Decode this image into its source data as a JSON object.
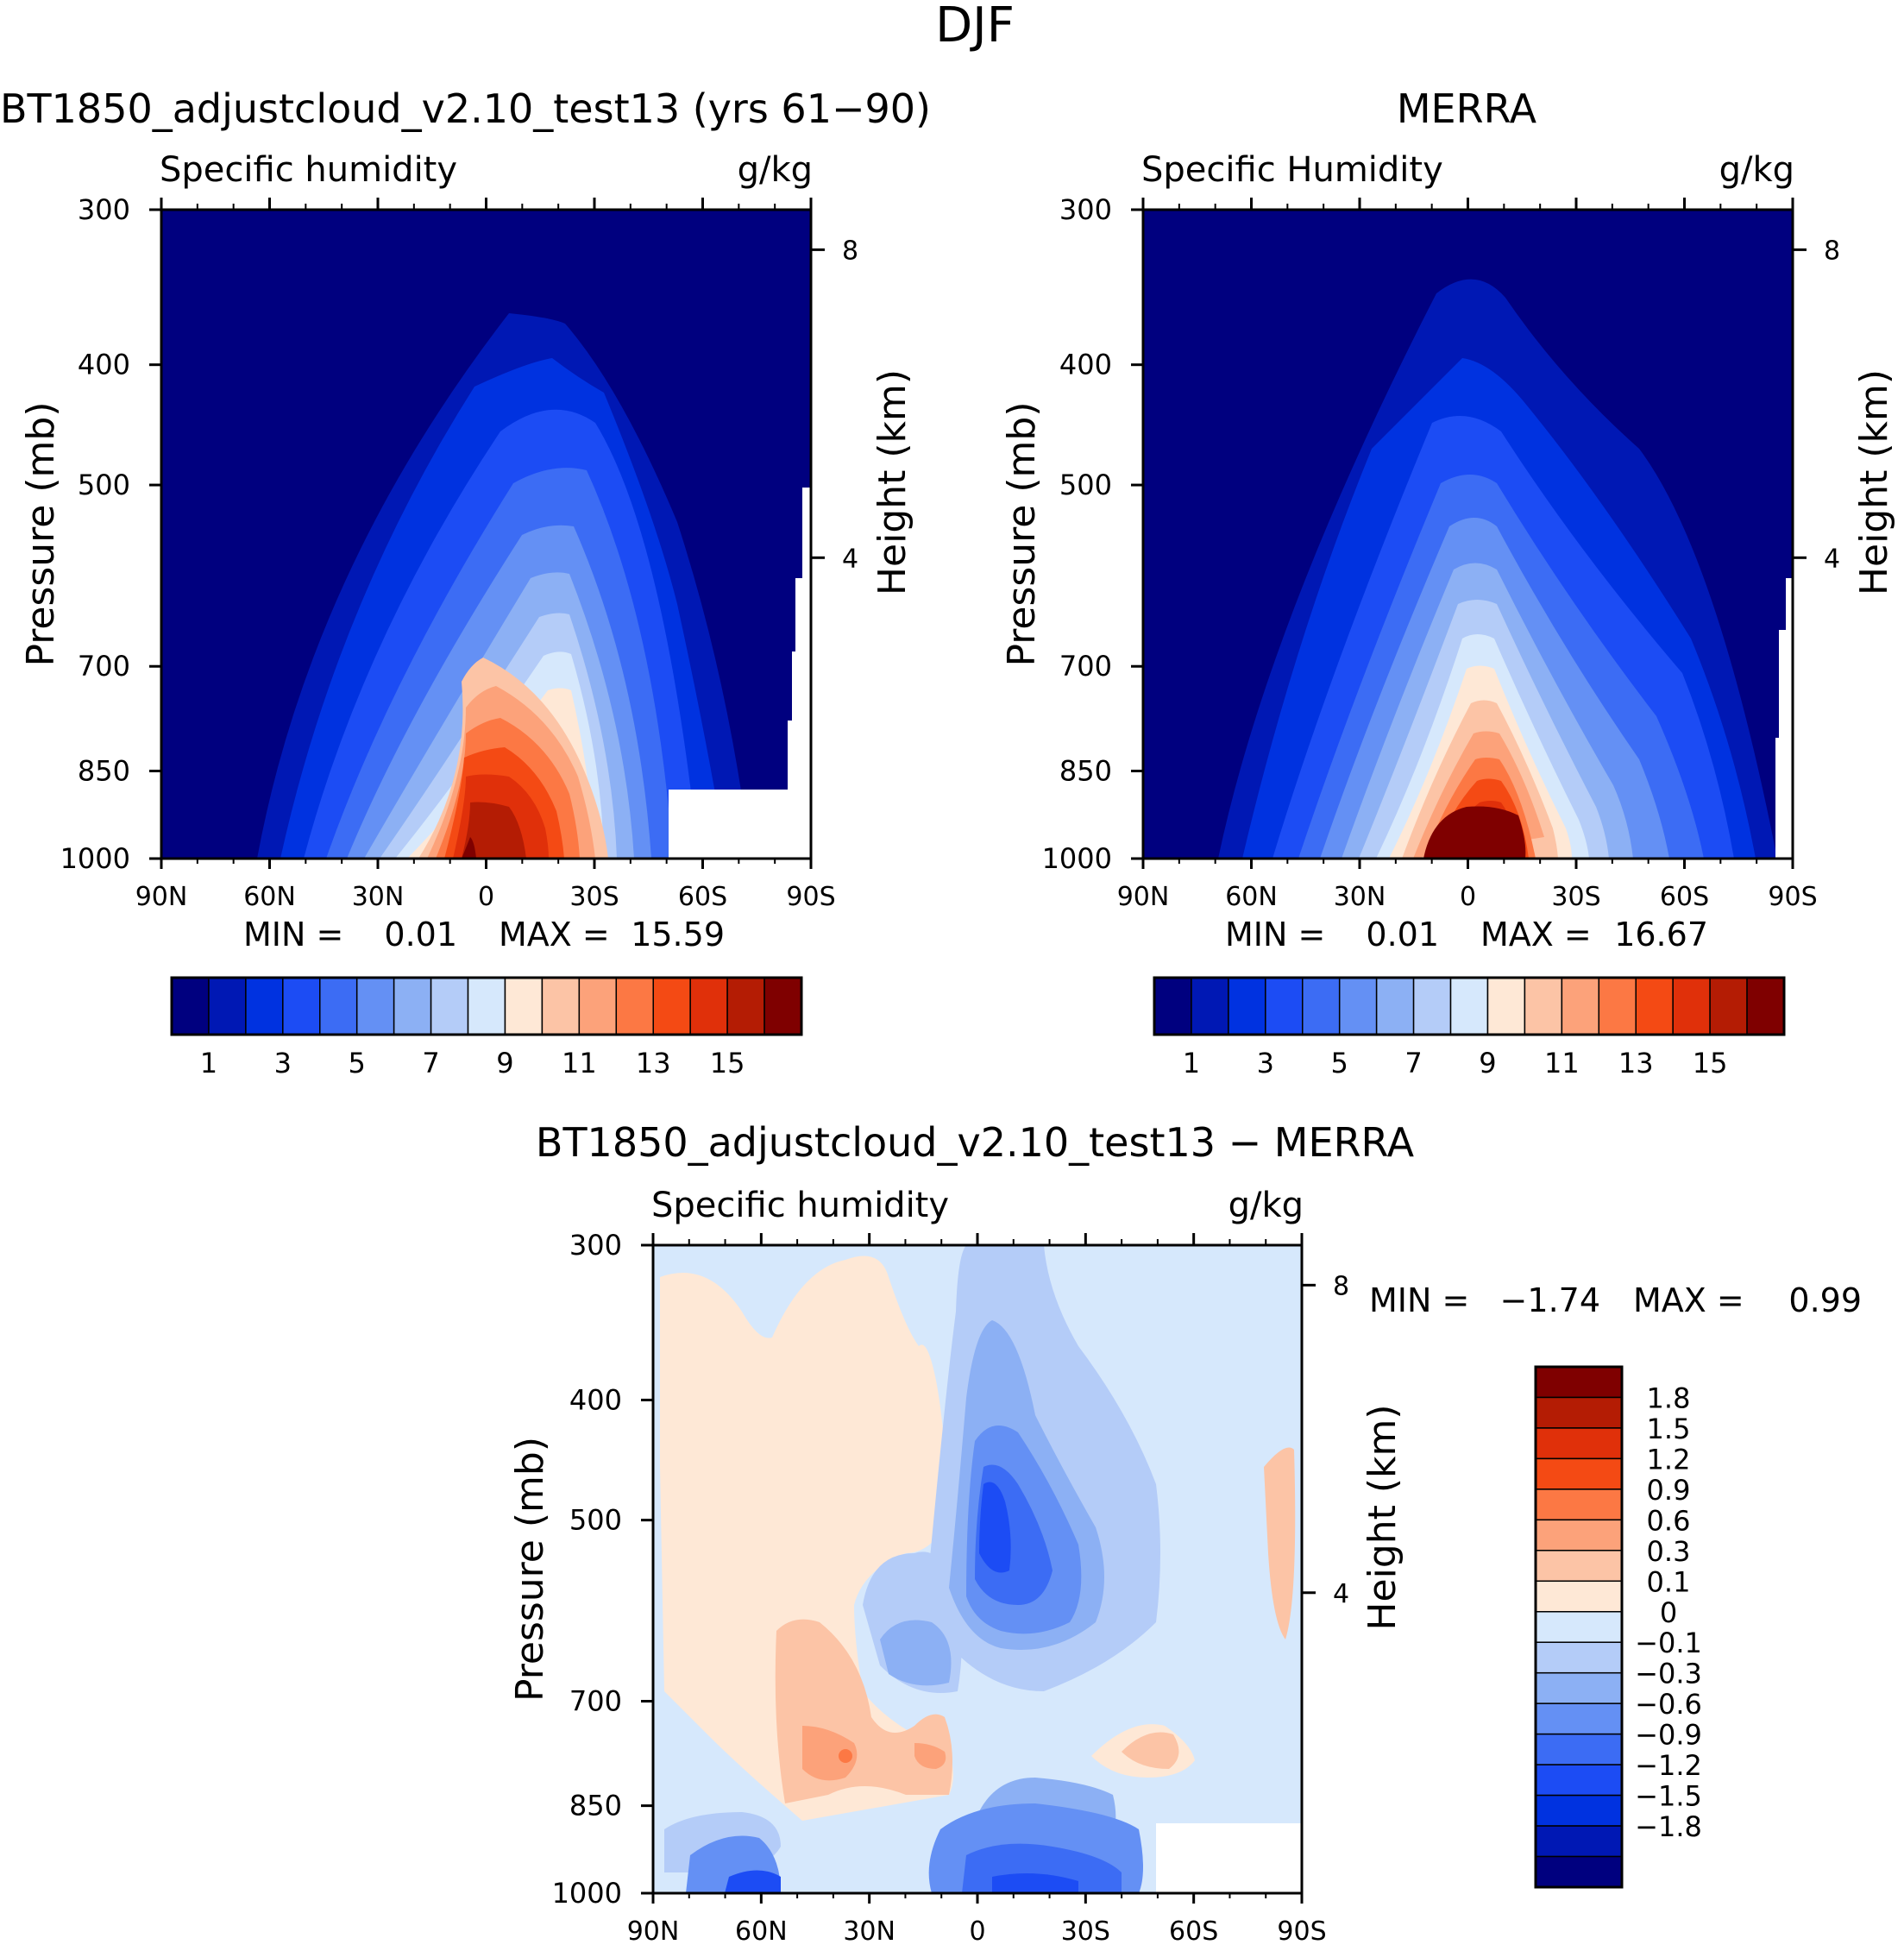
{
  "page_title": "DJF",
  "chart_data": [
    {
      "type": "heatmap",
      "panel": "model",
      "title": "BT1850_adjustcloud_v2.10_test13 (yrs 61−90)",
      "subtitle_left": "Specific humidity",
      "subtitle_right": "g/kg",
      "ylabel": "Pressure (mb)",
      "ylabel_right": "Height (km)",
      "x_ticks": [
        "90N",
        "60N",
        "30N",
        "0",
        "30S",
        "60S",
        "90S"
      ],
      "x_values": [
        90,
        60,
        30,
        0,
        -30,
        -60,
        -90
      ],
      "xlim": [
        90,
        -90
      ],
      "y_ticks": [
        "300",
        "400",
        "500",
        "700",
        "850",
        "1000"
      ],
      "y_values": [
        300,
        400,
        500,
        700,
        850,
        1000
      ],
      "ylim": [
        300,
        1000
      ],
      "height_ticks": [
        "8",
        "4"
      ],
      "height_values": [
        8,
        4
      ],
      "stats": {
        "min_label": "MIN =",
        "min": "0.01",
        "max_label": "MAX =",
        "max": "15.59"
      },
      "peak_value": 15.59,
      "peak_lat": 0,
      "colorbar": {
        "colors": [
          "#00007f",
          "#0018b4",
          "#0032e0",
          "#1c4cf4",
          "#3c6cf4",
          "#6490f4",
          "#8cb0f4",
          "#b4ccf8",
          "#d6e8fc",
          "#fee8d6",
          "#fcc4a6",
          "#fca27a",
          "#fc7844",
          "#f44a14",
          "#e0300a",
          "#b41c04",
          "#7f0000"
        ],
        "labels": [
          "1",
          "3",
          "5",
          "7",
          "9",
          "11",
          "13",
          "15"
        ],
        "label_values": [
          1,
          3,
          5,
          7,
          9,
          11,
          13,
          15
        ],
        "label_positions": [
          1,
          3,
          5,
          7,
          9,
          11,
          13,
          15
        ]
      }
    },
    {
      "type": "heatmap",
      "panel": "obs",
      "title": "MERRA",
      "subtitle_left": "Specific Humidity",
      "subtitle_right": "g/kg",
      "ylabel": "Pressure (mb)",
      "ylabel_right": "Height (km)",
      "x_ticks": [
        "90N",
        "60N",
        "30N",
        "0",
        "30S",
        "60S",
        "90S"
      ],
      "x_values": [
        90,
        60,
        30,
        0,
        -30,
        -60,
        -90
      ],
      "xlim": [
        90,
        -90
      ],
      "y_ticks": [
        "300",
        "400",
        "500",
        "700",
        "850",
        "1000"
      ],
      "y_values": [
        300,
        400,
        500,
        700,
        850,
        1000
      ],
      "ylim": [
        300,
        1000
      ],
      "height_ticks": [
        "8",
        "4"
      ],
      "height_values": [
        8,
        4
      ],
      "stats": {
        "min_label": "MIN =",
        "min": "0.01",
        "max_label": "MAX =",
        "max": "16.67"
      },
      "peak_value": 16.67,
      "peak_lat": 0,
      "colorbar": {
        "colors": [
          "#00007f",
          "#0018b4",
          "#0032e0",
          "#1c4cf4",
          "#3c6cf4",
          "#6490f4",
          "#8cb0f4",
          "#b4ccf8",
          "#d6e8fc",
          "#fee8d6",
          "#fcc4a6",
          "#fca27a",
          "#fc7844",
          "#f44a14",
          "#e0300a",
          "#b41c04",
          "#7f0000"
        ],
        "labels": [
          "1",
          "3",
          "5",
          "7",
          "9",
          "11",
          "13",
          "15"
        ],
        "label_values": [
          1,
          3,
          5,
          7,
          9,
          11,
          13,
          15
        ],
        "label_positions": [
          1,
          3,
          5,
          7,
          9,
          11,
          13,
          15
        ]
      }
    },
    {
      "type": "heatmap",
      "panel": "diff",
      "title": "BT1850_adjustcloud_v2.10_test13 − MERRA",
      "subtitle_left": "Specific humidity",
      "subtitle_right": "g/kg",
      "ylabel": "Pressure (mb)",
      "ylabel_right": "Height (km)",
      "x_ticks": [
        "90N",
        "60N",
        "30N",
        "0",
        "30S",
        "60S",
        "90S"
      ],
      "x_values": [
        90,
        60,
        30,
        0,
        -30,
        -60,
        -90
      ],
      "xlim": [
        90,
        -90
      ],
      "y_ticks": [
        "300",
        "400",
        "500",
        "700",
        "850",
        "1000"
      ],
      "y_values": [
        300,
        400,
        500,
        700,
        850,
        1000
      ],
      "ylim": [
        300,
        1000
      ],
      "height_ticks": [
        "8",
        "4"
      ],
      "height_values": [
        8,
        4
      ],
      "stats": {
        "min_label": "MIN =",
        "min": "−1.74",
        "max_label": "MAX =",
        "max": "0.99"
      },
      "colorbar": {
        "colors_top_to_bottom": [
          "#7f0000",
          "#b41c04",
          "#e0300a",
          "#f44a14",
          "#fc7844",
          "#fca27a",
          "#fcc4a6",
          "#fee8d6",
          "#d6e8fc",
          "#b4ccf8",
          "#8cb0f4",
          "#6490f4",
          "#3c6cf4",
          "#1c4cf4",
          "#0032e0",
          "#0018b4",
          "#00007f"
        ],
        "labels": [
          "1.8",
          "1.5",
          "1.2",
          "0.9",
          "0.6",
          "0.3",
          "0.1",
          "0",
          "−0.1",
          "−0.3",
          "−0.6",
          "−0.9",
          "−1.2",
          "−1.5",
          "−1.8"
        ]
      }
    }
  ]
}
